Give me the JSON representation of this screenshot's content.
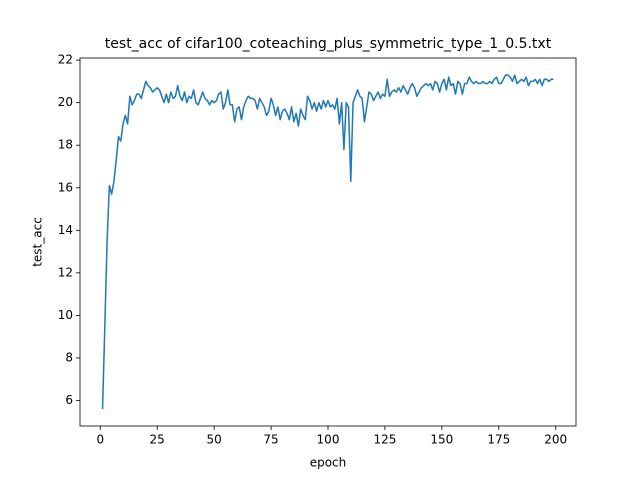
{
  "chart_data": {
    "type": "line",
    "title": "test_acc of cifar100_coteaching_plus_symmetric_type_1_0.5.txt",
    "xlabel": "epoch",
    "ylabel": "test_acc",
    "color": "#1f77b4",
    "x": [
      1,
      2,
      3,
      4,
      5,
      6,
      7,
      8,
      9,
      10,
      11,
      12,
      13,
      14,
      15,
      16,
      17,
      18,
      19,
      20,
      21,
      22,
      23,
      24,
      25,
      26,
      27,
      28,
      29,
      30,
      31,
      32,
      33,
      34,
      35,
      36,
      37,
      38,
      39,
      40,
      41,
      42,
      43,
      44,
      45,
      46,
      47,
      48,
      49,
      50,
      51,
      52,
      53,
      54,
      55,
      56,
      57,
      58,
      59,
      60,
      61,
      62,
      63,
      64,
      65,
      66,
      67,
      68,
      69,
      70,
      71,
      72,
      73,
      74,
      75,
      76,
      77,
      78,
      79,
      80,
      81,
      82,
      83,
      84,
      85,
      86,
      87,
      88,
      89,
      90,
      91,
      92,
      93,
      94,
      95,
      96,
      97,
      98,
      99,
      100,
      101,
      102,
      103,
      104,
      105,
      106,
      107,
      108,
      109,
      110,
      111,
      112,
      113,
      114,
      115,
      116,
      117,
      118,
      119,
      120,
      121,
      122,
      123,
      124,
      125,
      126,
      127,
      128,
      129,
      130,
      131,
      132,
      133,
      134,
      135,
      136,
      137,
      138,
      139,
      140,
      141,
      142,
      143,
      144,
      145,
      146,
      147,
      148,
      149,
      150,
      151,
      152,
      153,
      154,
      155,
      156,
      157,
      158,
      159,
      160,
      161,
      162,
      163,
      164,
      165,
      166,
      167,
      168,
      169,
      170,
      171,
      172,
      173,
      174,
      175,
      176,
      177,
      178,
      179,
      180,
      181,
      182,
      183,
      184,
      185,
      186,
      187,
      188,
      189,
      190,
      191,
      192,
      193,
      194,
      195,
      196,
      197,
      198,
      199
    ],
    "values": [
      5.6,
      9.5,
      13.5,
      16.1,
      15.7,
      16.3,
      17.3,
      18.4,
      18.2,
      19.0,
      19.4,
      19.0,
      20.3,
      19.9,
      20.1,
      20.4,
      20.4,
      20.2,
      20.6,
      21.0,
      20.8,
      20.7,
      20.5,
      20.6,
      20.7,
      20.6,
      20.3,
      20.0,
      20.4,
      20.0,
      20.5,
      20.2,
      20.3,
      20.8,
      20.3,
      20.1,
      20.5,
      20.0,
      20.3,
      20.2,
      20.6,
      20.0,
      19.9,
      20.2,
      20.5,
      20.2,
      20.1,
      19.9,
      20.1,
      20.0,
      20.1,
      20.4,
      20.5,
      19.7,
      20.0,
      20.6,
      19.9,
      19.9,
      19.1,
      19.7,
      19.8,
      19.2,
      19.8,
      20.1,
      20.3,
      20.2,
      20.2,
      20.1,
      19.7,
      20.2,
      20.0,
      19.8,
      19.4,
      19.6,
      20.2,
      19.9,
      19.4,
      19.8,
      19.2,
      19.6,
      19.7,
      19.5,
      19.2,
      19.8,
      19.1,
      19.5,
      18.9,
      19.7,
      19.4,
      19.2,
      20.3,
      20.1,
      19.7,
      20.0,
      19.6,
      20.0,
      19.7,
      20.1,
      19.8,
      20.1,
      19.8,
      19.9,
      19.7,
      20.2,
      19.0,
      20.0,
      17.8,
      20.0,
      19.8,
      16.3,
      20.0,
      20.3,
      20.6,
      20.3,
      20.2,
      19.1,
      19.8,
      20.5,
      20.4,
      20.1,
      20.3,
      20.5,
      20.2,
      20.4,
      20.3,
      21.1,
      20.3,
      20.5,
      20.6,
      20.5,
      20.7,
      20.5,
      20.8,
      20.6,
      20.4,
      20.7,
      20.9,
      20.7,
      20.3,
      20.5,
      20.7,
      20.8,
      20.9,
      20.8,
      20.9,
      20.6,
      21.0,
      20.9,
      20.5,
      20.9,
      21.1,
      20.6,
      21.2,
      20.8,
      20.9,
      20.4,
      21.0,
      20.9,
      20.4,
      20.9,
      20.9,
      21.2,
      21.0,
      20.9,
      21.0,
      20.9,
      20.9,
      21.0,
      20.9,
      20.9,
      21.0,
      20.9,
      21.1,
      21.2,
      20.9,
      20.9,
      21.1,
      21.3,
      21.3,
      21.2,
      21.0,
      21.3,
      20.9,
      21.0,
      21.1,
      21.0,
      21.2,
      20.8,
      21.0,
      21.0,
      21.1,
      20.9,
      21.1,
      20.8,
      21.1,
      21.1,
      21.0,
      21.1,
      21.1
    ],
    "xlim": [
      -8.9,
      208.9
    ],
    "ylim": [
      4.8,
      22.1
    ],
    "xticks": [
      0,
      25,
      50,
      75,
      100,
      125,
      150,
      175,
      200
    ],
    "yticks": [
      6,
      8,
      10,
      12,
      14,
      16,
      18,
      20,
      22
    ]
  }
}
